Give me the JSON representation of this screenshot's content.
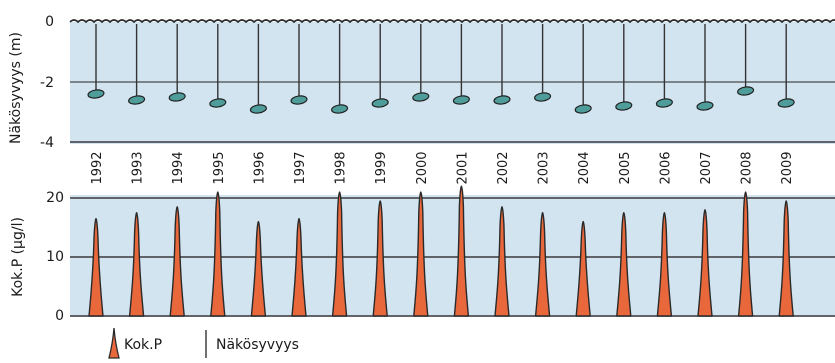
{
  "chart_data": [
    {
      "type": "scatter",
      "ylabel": "Näkösyvyys (m)",
      "ylim": [
        -4,
        0
      ],
      "yticks": [
        0,
        -2,
        -4
      ],
      "x": [
        "1992",
        "1993",
        "1994",
        "1995",
        "1996",
        "1997",
        "1998",
        "1999",
        "2000",
        "2001",
        "2002",
        "2003",
        "2004",
        "2005",
        "2006",
        "2007",
        "2008",
        "2009"
      ],
      "series": [
        {
          "name": "Näkösyvyys",
          "values": [
            -2.4,
            -2.6,
            -2.5,
            -2.7,
            -2.9,
            -2.6,
            -2.9,
            -2.7,
            -2.5,
            -2.6,
            -2.6,
            -2.5,
            -2.9,
            -2.8,
            -2.7,
            -2.8,
            -2.3,
            -2.7
          ]
        }
      ],
      "colors": {
        "background": "#d3e4f1",
        "marker": "#4e9d9b",
        "stem": "#333333"
      },
      "grid": true
    },
    {
      "type": "area",
      "ylabel": "Kok.P (µg/l)",
      "ylim": [
        0,
        20
      ],
      "yticks": [
        0,
        10,
        20
      ],
      "x": [
        "1992",
        "1993",
        "1994",
        "1995",
        "1996",
        "1997",
        "1998",
        "1999",
        "2000",
        "2001",
        "2002",
        "2003",
        "2004",
        "2005",
        "2006",
        "2007",
        "2008",
        "2009"
      ],
      "series": [
        {
          "name": "Kok.P",
          "values": [
            16.5,
            17.5,
            18.5,
            21,
            16,
            16.5,
            21,
            19.5,
            21,
            22,
            18.5,
            17.5,
            16,
            17.5,
            17.5,
            18,
            21,
            19.5
          ]
        }
      ],
      "colors": {
        "background": "#d3e4f1",
        "fill": "#e8683c",
        "outline": "#2a2a2a"
      },
      "grid": true
    }
  ],
  "legend": {
    "placement": "bottom-left",
    "items": [
      {
        "label": "Kok.P",
        "icon": "phosphorus-spike-icon"
      },
      {
        "label": "Näkösyvyys",
        "icon": "visibility-stem-icon"
      }
    ]
  }
}
